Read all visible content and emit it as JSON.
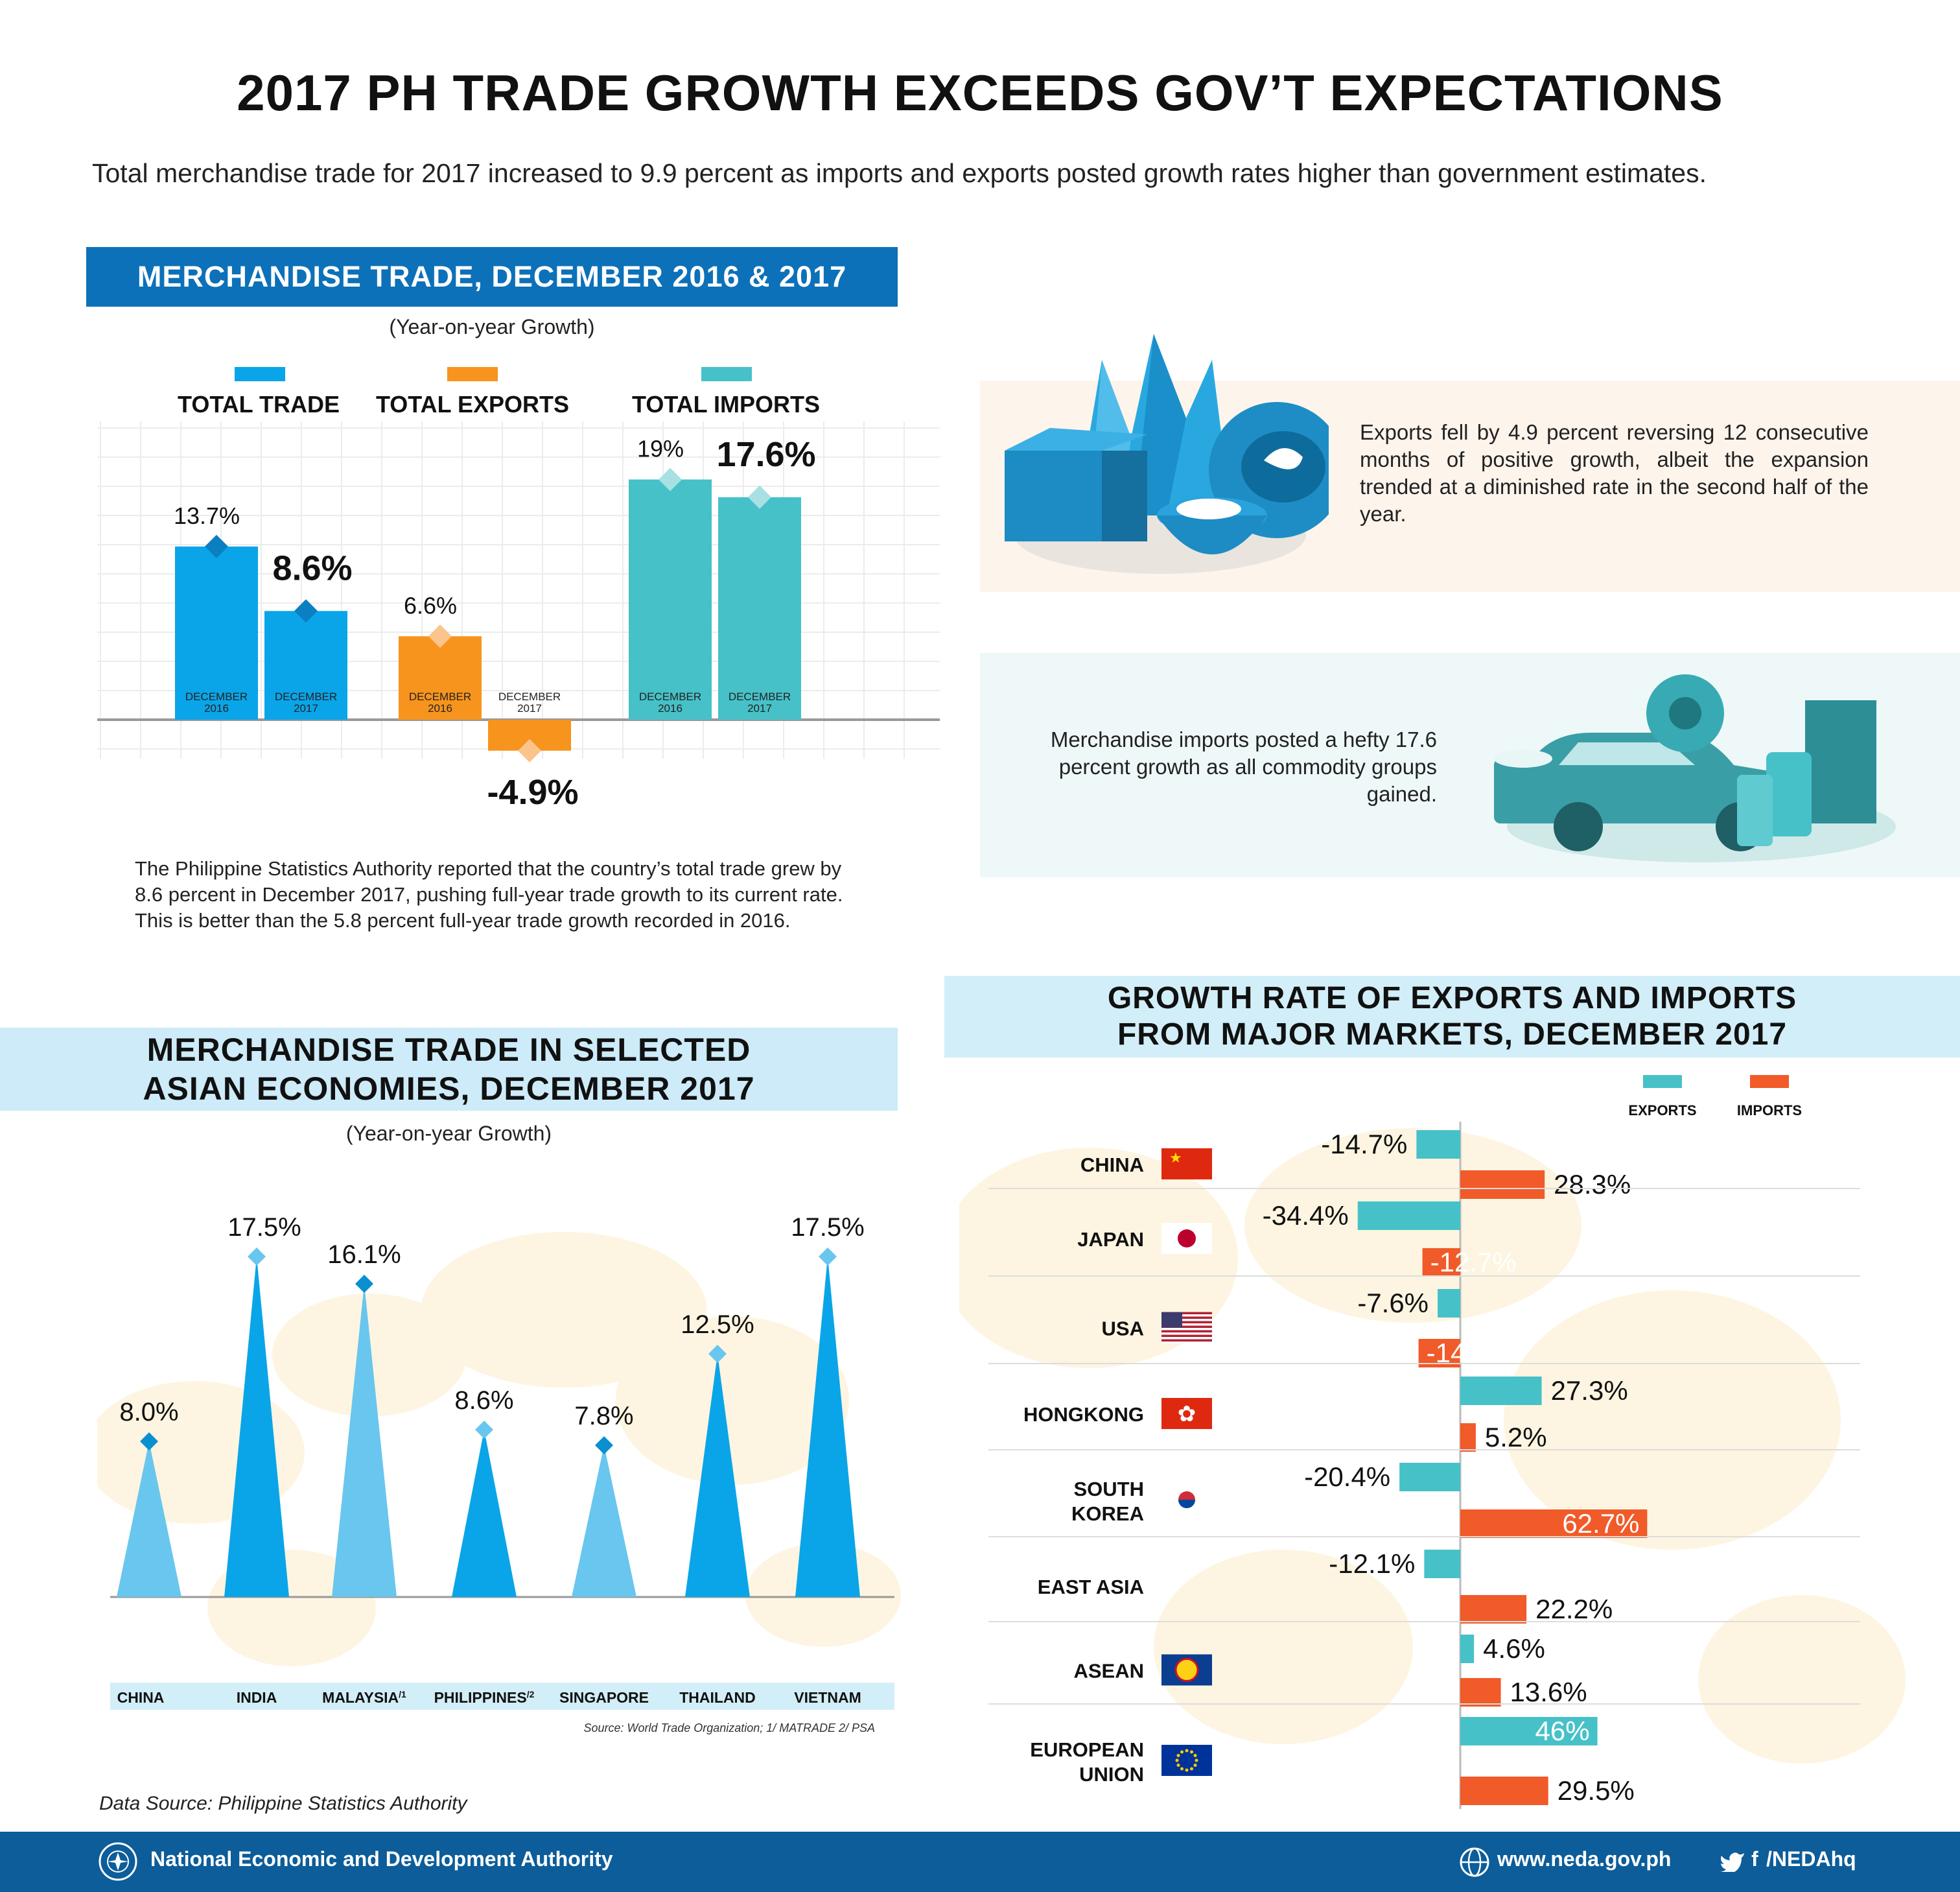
{
  "title": "2017 PH TRADE GROWTH EXCEEDS GOV’T EXPECTATIONS",
  "intro": "Total merchandise trade for 2017 increased to 9.9 percent as imports and exports posted growth rates higher than government estimates.",
  "colors": {
    "blue": "#0aa5e8",
    "orange": "#f7941d",
    "teal": "#47c1c8",
    "import_red": "#f15a29",
    "banner": "#0c71b8",
    "light_banner": "#cdebf8",
    "footer": "#0c5d99"
  },
  "section1": {
    "banner": "MERCHANDISE TRADE, DECEMBER 2016 & 2017",
    "subtitle": "(Year-on-year Growth)",
    "paragraph": "The Philippine Statistics Authority reported that the country’s total trade grew by 8.6 percent in December 2017, pushing full-year trade growth to its current rate. This is better than the 5.8 percent full-year trade growth recorded in 2016."
  },
  "exports_box": {
    "text": "Exports fell by 4.9 percent reversing 12 consecutive months of positive growth, albeit the expansion trended at a diminished rate in the second half of the year."
  },
  "imports_box": {
    "text": "Merchandise imports posted a hefty 17.6 percent growth as all commodity groups gained."
  },
  "section2": {
    "banner_line1": "MERCHANDISE TRADE IN SELECTED",
    "banner_line2": "ASIAN ECONOMIES, DECEMBER 2017",
    "subtitle": "(Year-on-year Growth)",
    "source": "Source: World Trade Organization; 1/ MATRADE 2/ PSA"
  },
  "section3": {
    "banner_line1": "GROWTH RATE OF EXPORTS AND IMPORTS",
    "banner_line2": "FROM MAJOR MARKETS, DECEMBER 2017"
  },
  "data_source": "Data Source: Philippine Statistics Authority",
  "footer": {
    "org": "National Economic and Development Authority",
    "website": "www.neda.gov.ph",
    "social": "/NEDAhq"
  },
  "chart_data": [
    {
      "type": "bar",
      "title": "MERCHANDISE TRADE, DECEMBER 2016 & 2017",
      "subtitle": "(Year-on-year Growth)",
      "groups": [
        {
          "name": "TOTAL TRADE",
          "color": "#0aa5e8",
          "bars": [
            {
              "label": "DECEMBER 2016",
              "value": 13.7,
              "text": "13.7%"
            },
            {
              "label": "DECEMBER 2017",
              "value": 8.6,
              "text": "8.6%"
            }
          ]
        },
        {
          "name": "TOTAL EXPORTS",
          "color": "#f7941d",
          "bars": [
            {
              "label": "DECEMBER 2016",
              "value": 6.6,
              "text": "6.6%"
            },
            {
              "label": "DECEMBER 2017",
              "value": -4.9,
              "text": "-4.9%"
            }
          ]
        },
        {
          "name": "TOTAL IMPORTS",
          "color": "#47c1c8",
          "bars": [
            {
              "label": "DECEMBER 2016",
              "value": 19,
              "text": "19%"
            },
            {
              "label": "DECEMBER 2017",
              "value": 17.6,
              "text": "17.6%"
            }
          ]
        }
      ],
      "legend": [
        "TOTAL TRADE",
        "TOTAL EXPORTS",
        "TOTAL IMPORTS"
      ],
      "ylim": [
        -6,
        22
      ],
      "grid": true
    },
    {
      "type": "bar",
      "title": "MERCHANDISE TRADE IN SELECTED ASIAN ECONOMIES, DECEMBER 2017",
      "subtitle": "(Year-on-year Growth)",
      "categories": [
        "CHINA",
        "INDIA",
        "MALAYSIA",
        "PHILIPPINES",
        "SINGAPORE",
        "THAILAND",
        "VIETNAM"
      ],
      "category_notes": [
        "",
        "",
        "/1",
        "/2",
        "",
        "",
        ""
      ],
      "values": [
        8.0,
        17.5,
        16.1,
        8.6,
        7.8,
        12.5,
        17.5
      ],
      "value_labels": [
        "8.0%",
        "17.5%",
        "16.1%",
        "8.6%",
        "7.8%",
        "12.5%",
        "17.5%"
      ],
      "ylim": [
        0,
        18
      ]
    },
    {
      "type": "bar",
      "orientation": "horizontal",
      "title": "GROWTH RATE OF EXPORTS AND IMPORTS FROM MAJOR MARKETS, DECEMBER 2017",
      "legend": [
        "EXPORTS",
        "IMPORTS"
      ],
      "categories": [
        "CHINA",
        "JAPAN",
        "USA",
        "HONGKONG",
        "SOUTH KOREA",
        "EAST ASIA",
        "ASEAN",
        "EUROPEAN UNION"
      ],
      "series": [
        {
          "name": "EXPORTS",
          "color": "#47c1c8",
          "values": [
            -14.7,
            -34.4,
            -7.6,
            27.3,
            -20.4,
            -12.1,
            4.6,
            46
          ],
          "labels": [
            "-14.7%",
            "-34.4%",
            "-7.6%",
            "27.3%",
            "-20.4%",
            "-12.1%",
            "4.6%",
            "46%"
          ]
        },
        {
          "name": "IMPORTS",
          "color": "#f15a29",
          "values": [
            28.3,
            -12.7,
            -14,
            5.2,
            62.7,
            22.2,
            13.6,
            29.5
          ],
          "labels": [
            "28.3%",
            "-12.7%",
            "-14%",
            "5.2%",
            "62.7%",
            "22.2%",
            "13.6%",
            "29.5%"
          ]
        }
      ]
    }
  ]
}
